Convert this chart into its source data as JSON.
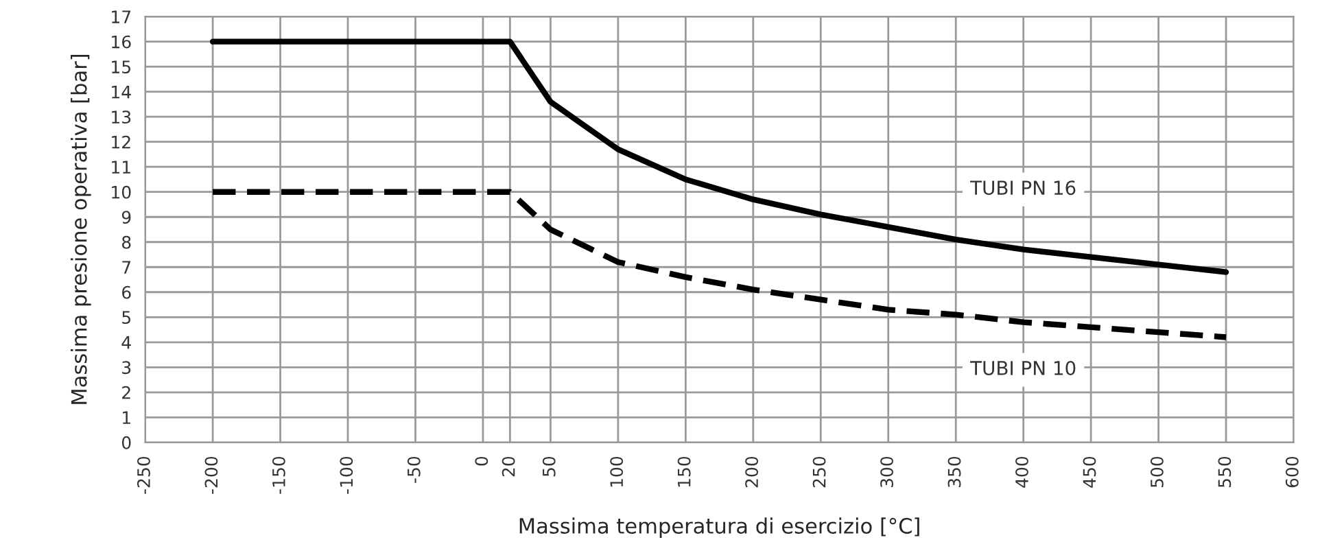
{
  "chart_data": {
    "type": "line",
    "xlabel": "Massima temperatura di esercizio [°C]",
    "ylabel": "Massima presione operativa [bar]",
    "x": [
      -200,
      20,
      50,
      100,
      150,
      200,
      250,
      300,
      350,
      400,
      450,
      500,
      550
    ],
    "series": [
      {
        "name": "TUBI PN 16",
        "color": "#000000",
        "line_style": "solid",
        "values": [
          16,
          16,
          13.6,
          11.7,
          10.5,
          9.7,
          9.1,
          8.6,
          8.1,
          7.7,
          7.4,
          7.1,
          6.8
        ]
      },
      {
        "name": "TUBI PN 10",
        "color": "#000000",
        "line_style": "dashed",
        "values": [
          10,
          10,
          8.5,
          7.2,
          6.6,
          6.1,
          5.7,
          5.3,
          5.1,
          4.8,
          4.6,
          4.4,
          4.2
        ]
      }
    ],
    "xlim": [
      -250,
      600
    ],
    "ylim": [
      0,
      17
    ],
    "xticks": [
      -250,
      -200,
      -150,
      -100,
      -50,
      0,
      {
        "value": 20,
        "label": "20"
      },
      50,
      100,
      150,
      200,
      250,
      300,
      350,
      400,
      450,
      500,
      550,
      600
    ],
    "yticks": [
      0,
      1,
      2,
      3,
      4,
      5,
      6,
      7,
      8,
      9,
      10,
      11,
      12,
      13,
      14,
      15,
      16,
      17
    ],
    "grid": true,
    "legend": false,
    "marker": "none"
  }
}
